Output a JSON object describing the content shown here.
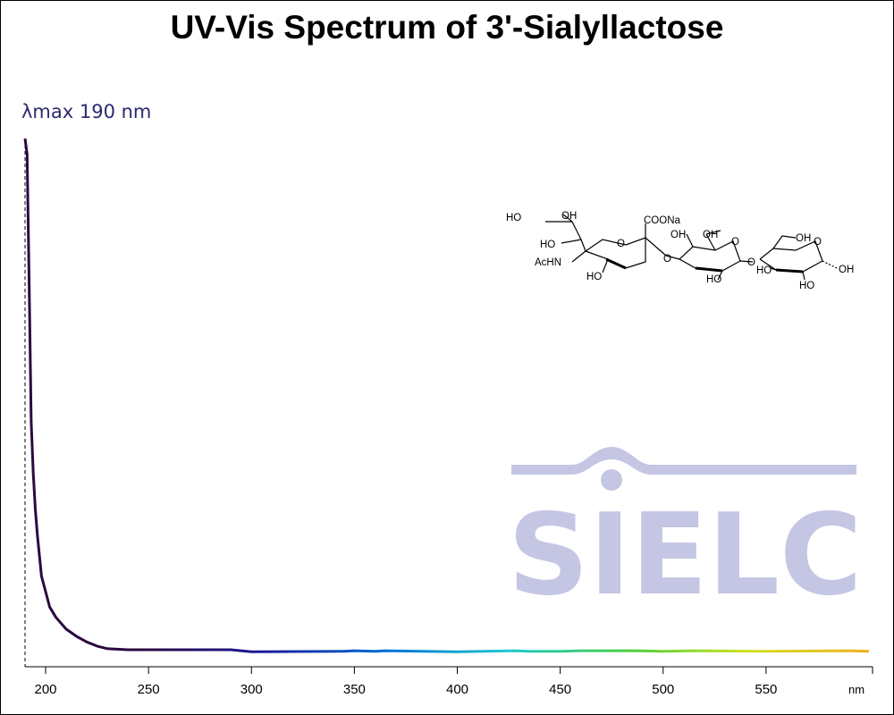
{
  "chart_data": {
    "type": "line",
    "title": "UV-Vis Spectrum of 3'-Sialyllactose",
    "annotation": "λmax  190 nm",
    "lambda_max": 190,
    "xlabel": "nm",
    "ylabel": "",
    "xlim": [
      190,
      600
    ],
    "ylim": [
      0,
      1.0
    ],
    "xticks": [
      200,
      250,
      300,
      350,
      400,
      450,
      500,
      550
    ],
    "grid": false,
    "line_gradient": [
      "#2a0a40",
      "#2a0a40",
      "#1c1a9a",
      "#0070d8",
      "#20c8d0",
      "#48d040",
      "#d0e020",
      "#f0b020"
    ],
    "series": [
      {
        "x": [
          190,
          191,
          192,
          193,
          194,
          195,
          196,
          197,
          198,
          200,
          202,
          205,
          210,
          215,
          220,
          225,
          230,
          240,
          250,
          290,
          300,
          345,
          350,
          360,
          365,
          400,
          428,
          435,
          450,
          460,
          470,
          487,
          500,
          515,
          550,
          590,
          600
        ],
        "y": [
          1.0,
          0.97,
          0.72,
          0.45,
          0.35,
          0.28,
          0.23,
          0.19,
          0.15,
          0.12,
          0.09,
          0.07,
          0.047,
          0.033,
          0.022,
          0.014,
          0.009,
          0.007,
          0.007,
          0.007,
          0.003,
          0.004,
          0.005,
          0.004,
          0.005,
          0.003,
          0.005,
          0.004,
          0.004,
          0.005,
          0.005,
          0.005,
          0.004,
          0.005,
          0.004,
          0.005,
          0.004
        ]
      }
    ]
  },
  "molecule": {
    "labels": [
      "HO",
      "OH",
      "HO",
      "AcHN",
      "HO",
      "COONa",
      "O",
      "O",
      "OH",
      "OH",
      "O",
      "HO",
      "O",
      "OH",
      "O",
      "HO",
      "HO",
      "OH"
    ]
  },
  "logo": {
    "text": "SIELC",
    "color": "#c5c6e4"
  }
}
